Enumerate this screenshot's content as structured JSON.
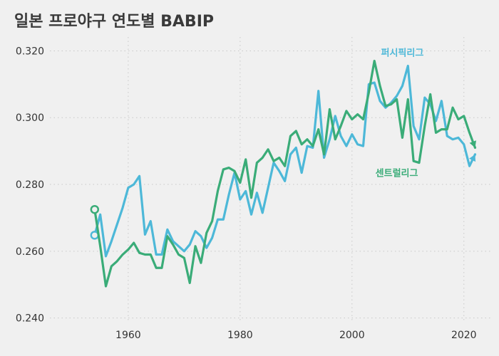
{
  "chart_data": {
    "type": "line",
    "title": "일본 프로야구 연도별 BABIP",
    "xlabel": "",
    "ylabel": "",
    "xlim": [
      1946,
      2025
    ],
    "ylim": [
      0.238,
      0.325
    ],
    "x_ticks": [
      1960,
      1980,
      2000,
      2020
    ],
    "x_tick_labels": [
      "1960",
      "1980",
      "2000",
      "2020"
    ],
    "y_ticks": [
      0.24,
      0.26,
      0.28,
      0.3,
      0.32
    ],
    "y_tick_labels": [
      "0.240",
      "0.260",
      "0.280",
      "0.300",
      "0.320"
    ],
    "grid": true,
    "series": [
      {
        "name": "퍼시픽리그",
        "color": "#4db8d8",
        "x": [
          1954,
          1955,
          1956,
          1957,
          1958,
          1959,
          1960,
          1961,
          1962,
          1963,
          1964,
          1965,
          1966,
          1967,
          1968,
          1969,
          1970,
          1971,
          1972,
          1973,
          1974,
          1975,
          1976,
          1977,
          1978,
          1979,
          1980,
          1981,
          1982,
          1983,
          1984,
          1985,
          1986,
          1987,
          1988,
          1989,
          1990,
          1991,
          1992,
          1993,
          1994,
          1995,
          1996,
          1997,
          1998,
          1999,
          2000,
          2001,
          2002,
          2003,
          2004,
          2005,
          2006,
          2007,
          2008,
          2009,
          2010,
          2011,
          2012,
          2013,
          2014,
          2015,
          2016,
          2017,
          2018,
          2019,
          2020,
          2021,
          2022
        ],
        "values": [
          0.2648,
          0.271,
          0.2585,
          0.263,
          0.268,
          0.273,
          0.279,
          0.28,
          0.2825,
          0.265,
          0.269,
          0.259,
          0.259,
          0.2665,
          0.263,
          0.2615,
          0.26,
          0.262,
          0.266,
          0.2645,
          0.261,
          0.264,
          0.2695,
          0.2695,
          0.277,
          0.2835,
          0.2755,
          0.278,
          0.271,
          0.2775,
          0.2715,
          0.279,
          0.2865,
          0.284,
          0.281,
          0.289,
          0.291,
          0.2835,
          0.2915,
          0.291,
          0.308,
          0.288,
          0.2935,
          0.3005,
          0.2945,
          0.2915,
          0.295,
          0.292,
          0.2915,
          0.31,
          0.3105,
          0.305,
          0.303,
          0.3045,
          0.3065,
          0.3095,
          0.3155,
          0.2975,
          0.2935,
          0.306,
          0.304,
          0.299,
          0.305,
          0.2945,
          0.2935,
          0.294,
          0.292,
          0.2855,
          0.289
        ],
        "start_marker": true,
        "end_marker": "arrow",
        "label_year": 2009,
        "label_value": 0.3185
      },
      {
        "name": "센트럴리그",
        "color": "#3aac78",
        "x": [
          1954,
          1955,
          1956,
          1957,
          1958,
          1959,
          1960,
          1961,
          1962,
          1963,
          1964,
          1965,
          1966,
          1967,
          1968,
          1969,
          1970,
          1971,
          1972,
          1973,
          1974,
          1975,
          1976,
          1977,
          1978,
          1979,
          1980,
          1981,
          1982,
          1983,
          1984,
          1985,
          1986,
          1987,
          1988,
          1989,
          1990,
          1991,
          1992,
          1993,
          1994,
          1995,
          1996,
          1997,
          1998,
          1999,
          2000,
          2001,
          2002,
          2003,
          2004,
          2005,
          2006,
          2007,
          2008,
          2009,
          2010,
          2011,
          2012,
          2013,
          2014,
          2015,
          2016,
          2017,
          2018,
          2019,
          2020,
          2021,
          2022
        ],
        "values": [
          0.2725,
          0.2615,
          0.2495,
          0.2555,
          0.257,
          0.259,
          0.2605,
          0.2625,
          0.2595,
          0.259,
          0.259,
          0.255,
          0.255,
          0.2645,
          0.262,
          0.259,
          0.258,
          0.2505,
          0.2615,
          0.2565,
          0.2655,
          0.269,
          0.278,
          0.2845,
          0.285,
          0.284,
          0.2805,
          0.2875,
          0.276,
          0.2865,
          0.288,
          0.2905,
          0.287,
          0.288,
          0.2855,
          0.2945,
          0.296,
          0.292,
          0.2935,
          0.2915,
          0.2965,
          0.289,
          0.3025,
          0.2935,
          0.2975,
          0.302,
          0.2995,
          0.301,
          0.2995,
          0.3075,
          0.317,
          0.3095,
          0.3035,
          0.304,
          0.3055,
          0.294,
          0.3055,
          0.287,
          0.2865,
          0.2975,
          0.307,
          0.2955,
          0.2965,
          0.2965,
          0.303,
          0.2995,
          0.3005,
          0.2955,
          0.291
        ],
        "start_marker": true,
        "end_marker": "arrow",
        "label_year": 2008,
        "label_value": 0.2825
      }
    ]
  }
}
